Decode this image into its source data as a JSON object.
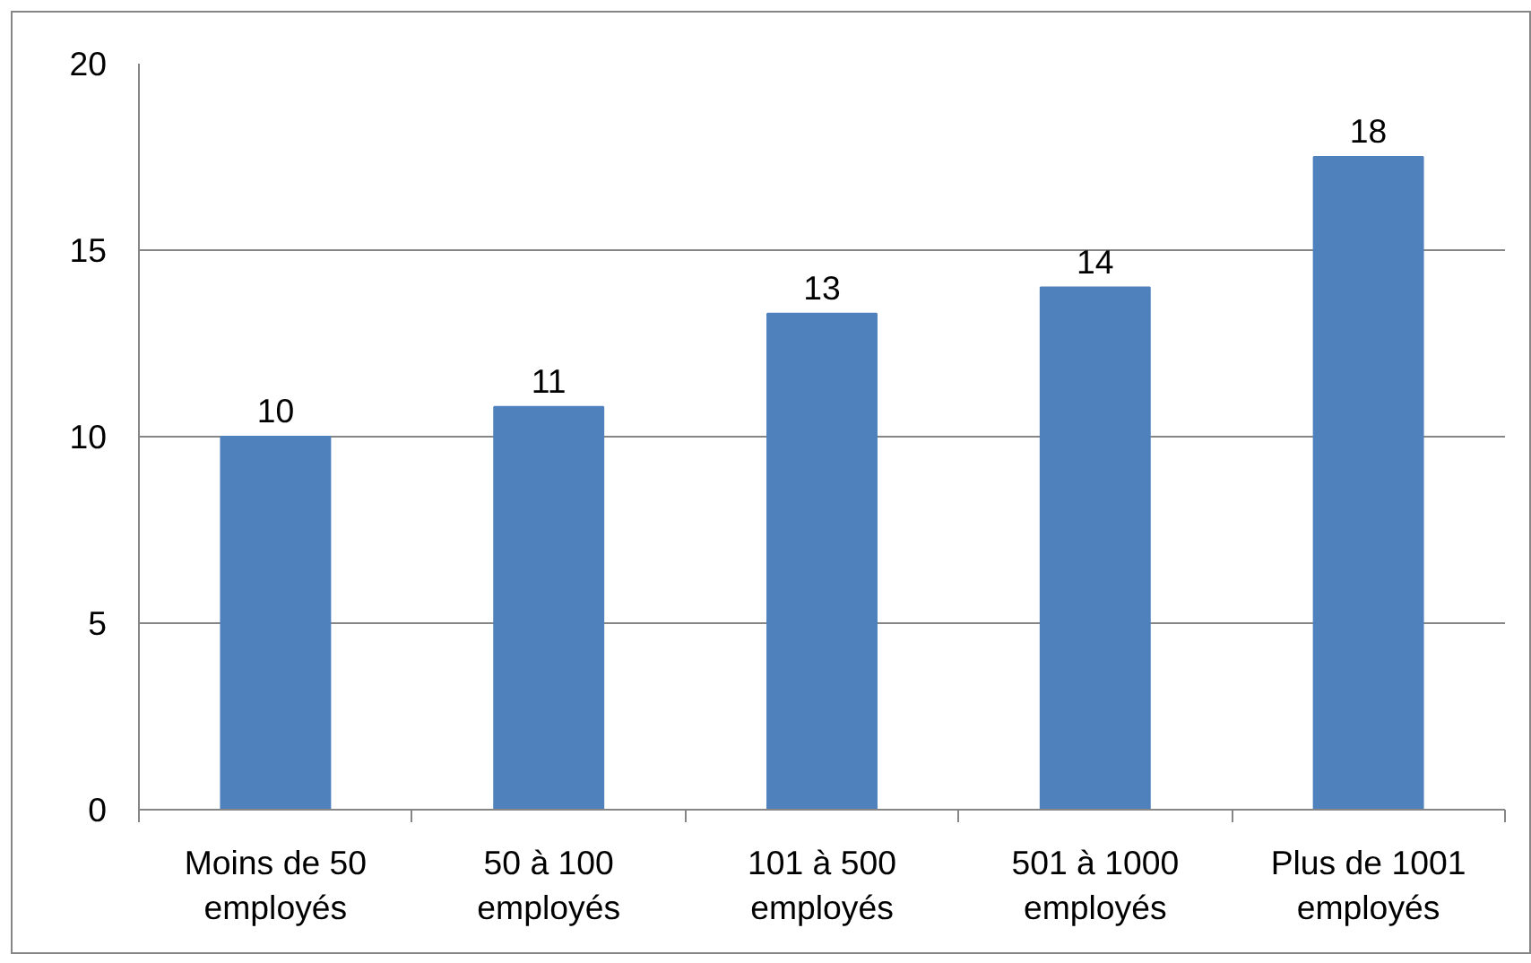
{
  "chart_data": {
    "type": "bar",
    "categories": [
      "Moins de 50 employés",
      "50 à 100 employés",
      "101 à 500 employés",
      "501 à 1000 employés",
      "Plus de 1001 employés"
    ],
    "values": [
      10,
      10.8,
      13.3,
      14,
      17.5
    ],
    "value_labels": [
      "10",
      "11",
      "13",
      "14",
      "18"
    ],
    "color": "#4f81bd",
    "ylim": [
      0,
      20
    ],
    "yticks": [
      0,
      5,
      10,
      15,
      20
    ],
    "grid": "y"
  }
}
